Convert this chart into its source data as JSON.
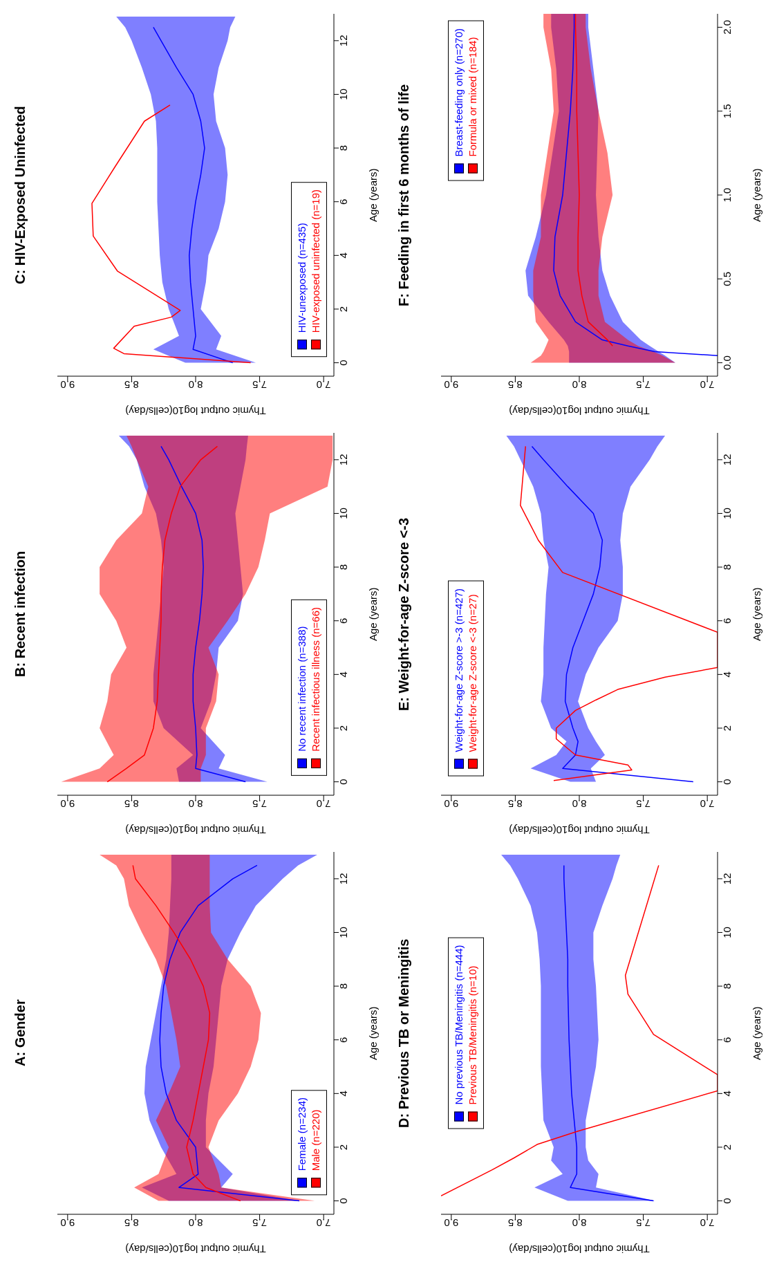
{
  "chart_data": [
    {
      "type": "line",
      "orientation": "horizontal",
      "title": "A: Gender",
      "xlabel": "Thymic output log10(cells/day)",
      "ylabel": "Age (years)",
      "xlim": [
        9.08,
        6.92
      ],
      "xticks": [
        {
          "value": 7,
          "label": "7.0"
        },
        {
          "value": 7.5,
          "label": "7.5"
        },
        {
          "value": 8,
          "label": "8.0"
        },
        {
          "value": 8.5,
          "label": "8.5"
        },
        {
          "value": 9,
          "label": "9.0"
        }
      ],
      "ylim": [
        -0.5,
        13
      ],
      "yticks": [
        0,
        2,
        4,
        6,
        8,
        10,
        12
      ],
      "legend": "bottom right",
      "series": [
        {
          "name": "Female (n=234)",
          "color": "#0000ff",
          "x": [
            0,
            0.5,
            1,
            2,
            3,
            4,
            5,
            6,
            7,
            8,
            9,
            10,
            11,
            12,
            12.5,
            12.9
          ],
          "values": [
            7.19,
            8.13,
            7.98,
            8.0,
            8.15,
            8.23,
            8.27,
            8.28,
            8.27,
            8.25,
            8.2,
            8.12,
            7.98,
            7.71,
            7.52,
            null
          ],
          "upper": [
            8.21,
            8.42,
            8.15,
            8.27,
            8.36,
            8.4,
            8.39,
            8.35,
            8.31,
            8.27,
            8.23,
            8.21,
            8.2,
            8.19,
            8.19,
            8.19
          ],
          "lower": [
            7.19,
            7.8,
            7.71,
            7.92,
            7.92,
            7.9,
            7.86,
            7.84,
            7.82,
            7.8,
            7.75,
            7.65,
            7.53,
            7.32,
            7.2,
            7.05
          ]
        },
        {
          "name": "Male (n=220)",
          "color": "#ff0000",
          "x": [
            0,
            0.5,
            1,
            2,
            3,
            4,
            5,
            6,
            7,
            8,
            9,
            10,
            11,
            12,
            12.5,
            12.9
          ],
          "values": [
            7.65,
            7.92,
            8.02,
            8.07,
            8.02,
            7.98,
            7.94,
            7.9,
            7.89,
            7.94,
            8.04,
            8.17,
            8.31,
            8.47,
            8.49,
            null
          ],
          "upper": [
            8.29,
            8.48,
            8.29,
            8.21,
            8.31,
            8.21,
            8.12,
            8.15,
            8.19,
            8.23,
            8.31,
            8.42,
            8.52,
            8.56,
            8.62,
            8.75
          ],
          "lower": [
            7.07,
            7.8,
            7.82,
            7.9,
            7.82,
            7.67,
            7.57,
            7.51,
            7.49,
            7.57,
            7.75,
            7.88,
            7.89,
            7.89,
            7.89,
            7.89
          ]
        }
      ]
    },
    {
      "type": "line",
      "orientation": "horizontal",
      "title": "B: Recent infection",
      "xlabel": "Thymic output log10(cells/day)",
      "ylabel": "Age (years)",
      "xlim": [
        9.08,
        6.92
      ],
      "xticks": [
        {
          "value": 7,
          "label": "7.0"
        },
        {
          "value": 7.5,
          "label": "7.5"
        },
        {
          "value": 8,
          "label": "8.0"
        },
        {
          "value": 8.5,
          "label": "8.5"
        },
        {
          "value": 9,
          "label": "9.0"
        }
      ],
      "ylim": [
        -0.5,
        13
      ],
      "yticks": [
        0,
        2,
        4,
        6,
        8,
        10,
        12
      ],
      "legend": "bottom right",
      "series": [
        {
          "name": "No recent infection (n=388)",
          "color": "#0000ff",
          "x": [
            0,
            0.5,
            1,
            2,
            3,
            4,
            5,
            6,
            7,
            8,
            9,
            10,
            11,
            12,
            12.5,
            12.9
          ],
          "values": [
            7.61,
            8.0,
            7.99,
            8.0,
            8.02,
            8.02,
            8.0,
            7.97,
            7.95,
            7.94,
            7.95,
            8.0,
            8.11,
            8.21,
            8.27,
            null
          ],
          "upper": [
            8.13,
            8.15,
            8.02,
            8.25,
            8.33,
            8.33,
            8.31,
            8.29,
            8.27,
            8.25,
            8.27,
            8.31,
            8.4,
            8.46,
            8.52,
            8.6
          ],
          "lower": [
            7.44,
            7.82,
            7.77,
            7.96,
            7.88,
            7.84,
            7.82,
            7.67,
            7.63,
            7.65,
            7.67,
            7.69,
            7.65,
            7.61,
            7.6,
            7.59
          ]
        },
        {
          "name": "Recent infectious illness (n=66)",
          "color": "#ff0000",
          "x": [
            0,
            0.5,
            1,
            2,
            3,
            4,
            5,
            6,
            7,
            8,
            9,
            10,
            11,
            12,
            12.5,
            12.9
          ],
          "values": [
            8.69,
            8.54,
            8.4,
            8.33,
            8.3,
            8.29,
            8.28,
            8.27,
            8.27,
            8.26,
            8.24,
            8.19,
            8.12,
            7.96,
            7.83,
            null
          ],
          "upper": [
            9.05,
            8.75,
            8.64,
            8.75,
            8.69,
            8.66,
            8.54,
            8.62,
            8.75,
            8.75,
            8.62,
            8.42,
            8.37,
            8.46,
            8.5,
            8.54
          ],
          "lower": [
            7.96,
            7.96,
            7.92,
            7.92,
            7.84,
            7.82,
            7.9,
            7.75,
            7.61,
            7.51,
            7.46,
            7.42,
            6.97,
            6.93,
            6.93,
            6.93
          ]
        }
      ]
    },
    {
      "type": "line",
      "orientation": "horizontal",
      "title": "C: HIV-Exposed Uninfected",
      "xlabel": "Thymic output log10(cells/day)",
      "ylabel": "Age (years)",
      "xlim": [
        9.08,
        6.92
      ],
      "xticks": [
        {
          "value": 7,
          "label": "7.0"
        },
        {
          "value": 7.5,
          "label": "7.5"
        },
        {
          "value": 8,
          "label": "8.0"
        },
        {
          "value": 8.5,
          "label": "8.5"
        },
        {
          "value": 9,
          "label": "9.0"
        }
      ],
      "ylim": [
        -0.5,
        13
      ],
      "yticks": [
        0,
        2,
        4,
        6,
        8,
        10,
        12
      ],
      "legend": "bottom right",
      "series": [
        {
          "name": "HIV-unexposed (n=435)",
          "color": "#0000ff",
          "x": [
            0,
            0.5,
            1,
            2,
            3,
            4,
            5,
            6,
            7,
            8,
            9,
            10,
            11,
            12,
            12.5,
            12.9
          ],
          "values": [
            7.71,
            8.02,
            8.0,
            8.02,
            8.04,
            8.05,
            8.03,
            8.0,
            7.96,
            7.93,
            7.96,
            8.02,
            8.15,
            8.27,
            8.33,
            null
          ],
          "upper": [
            8.08,
            8.33,
            8.13,
            8.21,
            8.26,
            8.28,
            8.29,
            8.3,
            8.3,
            8.3,
            8.31,
            8.35,
            8.42,
            8.5,
            8.55,
            8.62
          ],
          "lower": [
            7.53,
            7.84,
            7.8,
            7.96,
            7.92,
            7.9,
            7.82,
            7.77,
            7.75,
            7.77,
            7.84,
            7.86,
            7.82,
            7.75,
            7.73,
            7.69
          ]
        },
        {
          "name": "HIV-exposed uninfected (n=19)",
          "color": "#ff0000",
          "x": [
            0,
            0.34,
            0.54,
            1.36,
            1.7,
            1.95,
            3.41,
            4.72,
            5.94,
            7.3,
            9.0,
            9.6
          ],
          "values": [
            7.57,
            8.56,
            8.64,
            8.48,
            8.19,
            8.12,
            8.61,
            8.8,
            8.81,
            8.63,
            8.4,
            8.2
          ]
        }
      ]
    },
    {
      "type": "line",
      "orientation": "horizontal",
      "title": "D: Previous TB or Meningitis",
      "xlabel": "Thymic output log10(cells/day)",
      "ylabel": "Age (years)",
      "xlim": [
        9.08,
        6.92
      ],
      "xticks": [
        {
          "value": 7,
          "label": "7.0"
        },
        {
          "value": 7.5,
          "label": "7.5"
        },
        {
          "value": 8,
          "label": "8.0"
        },
        {
          "value": 8.5,
          "label": "8.5"
        },
        {
          "value": 9,
          "label": "9.0"
        }
      ],
      "ylim": [
        -0.5,
        13
      ],
      "yticks": [
        0,
        2,
        4,
        6,
        8,
        10,
        12
      ],
      "legend": "left",
      "series": [
        {
          "name": "No previous TB/Meningitis (n=444)",
          "color": "#0000ff",
          "x": [
            0,
            0.5,
            1,
            1.5,
            2,
            3,
            4,
            5,
            6,
            8,
            9,
            10,
            11,
            12,
            12.5,
            12.9
          ],
          "values": [
            7.42,
            8.07,
            8.02,
            8.02,
            8.02,
            8.04,
            8.06,
            8.07,
            8.08,
            8.09,
            8.09,
            8.1,
            8.11,
            8.12,
            8.12,
            null
          ],
          "upper": [
            8.09,
            8.35,
            8.13,
            8.22,
            8.2,
            8.28,
            8.29,
            8.3,
            8.3,
            8.3,
            8.31,
            8.33,
            8.38,
            8.48,
            8.54,
            8.61
          ],
          "lower": [
            7.41,
            7.87,
            7.85,
            7.93,
            7.95,
            7.95,
            7.91,
            7.87,
            7.85,
            7.87,
            7.89,
            7.89,
            7.82,
            7.74,
            7.71,
            7.68
          ]
        },
        {
          "name": "Previous TB/Meningitis (n=10)",
          "color": "#ff0000",
          "x": [
            0.19,
            1.16,
            1.6,
            2.1,
            2.6,
            4.1,
            4.4,
            4.7,
            6.2,
            7.7,
            8.4,
            12.5
          ],
          "values": [
            9.08,
            8.68,
            8.51,
            8.33,
            8.01,
            6.92,
            null,
            6.92,
            7.42,
            7.62,
            7.64,
            7.38
          ]
        }
      ]
    },
    {
      "type": "line",
      "orientation": "horizontal",
      "title": "E: Weight-for-age Z-score <-3",
      "xlabel": "Thymic output log10(cells/day)",
      "ylabel": "Age (years)",
      "xlim": [
        9.08,
        6.92
      ],
      "xticks": [
        {
          "value": 7,
          "label": "7.0"
        },
        {
          "value": 7.5,
          "label": "7.5"
        },
        {
          "value": 8,
          "label": "8.0"
        },
        {
          "value": 8.5,
          "label": "8.5"
        },
        {
          "value": 9,
          "label": "9.0"
        }
      ],
      "ylim": [
        -0.5,
        13
      ],
      "yticks": [
        0,
        2,
        4,
        6,
        8,
        10,
        12
      ],
      "legend": "bottom left",
      "series": [
        {
          "name": "Weight-for-age Z-score >-3 (n=427)",
          "color": "#0000ff",
          "x": [
            0,
            0.5,
            1,
            1.5,
            2,
            3,
            4,
            5,
            6,
            7,
            8,
            9,
            10,
            11,
            12,
            12.5,
            12.9
          ],
          "values": [
            7.11,
            8.13,
            8.03,
            8.01,
            8.05,
            8.11,
            8.1,
            8.05,
            7.97,
            7.89,
            7.84,
            7.82,
            7.89,
            8.09,
            8.28,
            8.37,
            null
          ],
          "upper": [
            8.07,
            8.38,
            8.18,
            8.1,
            8.22,
            8.3,
            8.28,
            8.28,
            8.27,
            8.26,
            8.24,
            8.28,
            8.3,
            8.36,
            8.46,
            8.51,
            8.57
          ],
          "lower": [
            7.87,
            7.91,
            7.8,
            7.87,
            7.93,
            8.01,
            7.95,
            7.85,
            7.7,
            7.66,
            7.66,
            7.68,
            7.66,
            7.6,
            7.45,
            7.39,
            7.33
          ]
        },
        {
          "name": "Weight-for-age Z-score <-3 (n=27)",
          "color": "#ff0000",
          "x": [
            0.05,
            0.44,
            0.63,
            1.0,
            1.6,
            2.0,
            2.66,
            3.05,
            3.44,
            3.9,
            4.26,
            4.9,
            5.57,
            7.8,
            9.0,
            10.3,
            12.5
          ],
          "values": [
            8.2,
            7.59,
            7.62,
            8.03,
            8.18,
            8.18,
            8.03,
            7.87,
            7.7,
            7.33,
            6.92,
            null,
            6.92,
            8.13,
            8.32,
            8.46,
            8.42
          ]
        }
      ]
    },
    {
      "type": "line",
      "orientation": "horizontal",
      "title": "F: Feeding in first 6 months of life",
      "xlabel": "Thymic output log10(cells/day)",
      "ylabel": "Age (years)",
      "xlim": [
        9.08,
        6.92
      ],
      "xticks": [
        {
          "value": 7,
          "label": "7.0"
        },
        {
          "value": 7.5,
          "label": "7.5"
        },
        {
          "value": 8,
          "label": "8.0"
        },
        {
          "value": 8.5,
          "label": "8.5"
        },
        {
          "value": 9,
          "label": "9.0"
        }
      ],
      "ylim": [
        -0.08,
        2.08
      ],
      "yticks": [
        {
          "value": 0,
          "label": "0.0"
        },
        {
          "value": 0.5,
          "label": "0.5"
        },
        {
          "value": 1,
          "label": "1.0"
        },
        {
          "value": 1.5,
          "label": "1.5"
        },
        {
          "value": 2,
          "label": "2.0"
        }
      ],
      "legend": "top left",
      "series": [
        {
          "name": "Breast-feeding only (n=270)",
          "color": "#0000ff",
          "x": [
            0,
            0.043,
            0.066,
            0.1,
            0.136,
            0.244,
            0.4,
            0.55,
            0.75,
            1.0,
            1.25,
            1.5,
            1.75,
            2.0,
            2.08
          ],
          "values": [
            null,
            6.92,
            7.41,
            7.62,
            7.82,
            8.03,
            8.15,
            8.2,
            8.19,
            8.13,
            8.1,
            8.07,
            8.05,
            8.04,
            8.04
          ],
          "upper": [
            8.08,
            8.08,
            8.08,
            8.09,
            8.12,
            8.24,
            8.4,
            8.42,
            8.34,
            8.26,
            8.21,
            8.16,
            8.18,
            8.22,
            8.22
          ],
          "lower": [
            7.25,
            7.33,
            7.38,
            7.45,
            7.52,
            7.66,
            7.76,
            7.82,
            7.85,
            7.87,
            7.86,
            7.85,
            7.89,
            7.93,
            7.93
          ]
        },
        {
          "name": "Formula or mixed (n=184)",
          "color": "#ff0000",
          "x": [
            0,
            0.043,
            0.066,
            0.1,
            0.136,
            0.244,
            0.4,
            0.55,
            0.75,
            1.0,
            1.25,
            1.5,
            1.75,
            2.0,
            2.08
          ],
          "values": [
            null,
            null,
            null,
            7.74,
            7.78,
            7.93,
            7.98,
            8.01,
            8.01,
            8.0,
            8.01,
            8.02,
            8.02,
            8.03,
            8.03
          ],
          "upper": [
            8.38,
            8.3,
            8.28,
            8.26,
            8.24,
            8.34,
            8.36,
            8.36,
            8.3,
            8.3,
            8.25,
            8.2,
            8.22,
            8.28,
            8.28
          ],
          "lower": [
            7.25,
            7.35,
            7.42,
            7.54,
            7.62,
            7.8,
            7.85,
            7.85,
            7.82,
            7.74,
            7.78,
            7.85,
            7.91,
            7.95,
            7.95
          ]
        }
      ]
    }
  ]
}
